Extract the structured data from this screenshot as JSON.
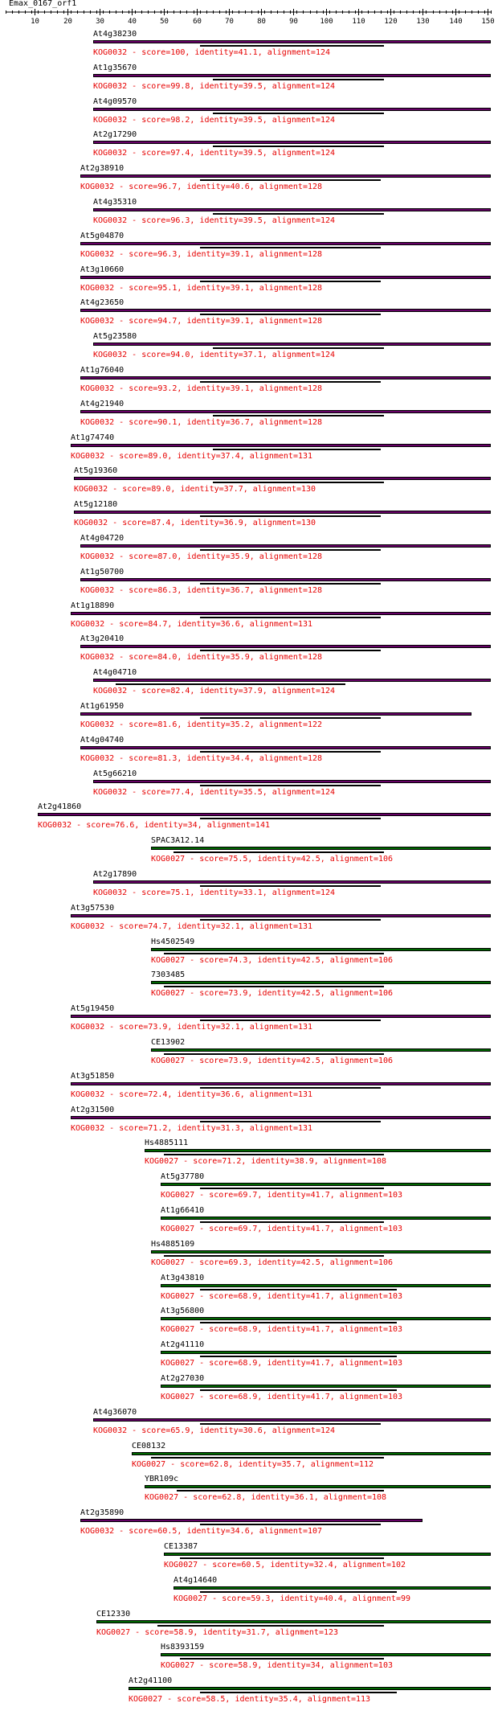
{
  "title": "Emax_0167_orf1",
  "ruler": {
    "ticks": [
      10,
      20,
      30,
      40,
      50,
      60,
      70,
      80,
      90,
      100,
      110,
      120,
      130,
      140,
      150
    ],
    "range": [
      1,
      151
    ]
  },
  "colors": {
    "KOG0032": "#660066",
    "KOG0027": "#006600",
    "score_text": "#e60000",
    "label_text": "#000000"
  },
  "hits": [
    {
      "name": "At4g38230",
      "kog": "KOG0032",
      "score_text": "KOG0032 - score=100, identity=41.1, alignment=124",
      "start": 28,
      "end": 151,
      "inner_start": 61,
      "inner_end": 118
    },
    {
      "name": "At1g35670",
      "kog": "KOG0032",
      "score_text": "KOG0032 - score=99.8, identity=39.5, alignment=124",
      "start": 28,
      "end": 151,
      "inner_start": 65,
      "inner_end": 118
    },
    {
      "name": "At4g09570",
      "kog": "KOG0032",
      "score_text": "KOG0032 - score=98.2, identity=39.5, alignment=124",
      "start": 28,
      "end": 151,
      "inner_start": 65,
      "inner_end": 118
    },
    {
      "name": "At2g17290",
      "kog": "KOG0032",
      "score_text": "KOG0032 - score=97.4, identity=39.5, alignment=124",
      "start": 28,
      "end": 151,
      "inner_start": 65,
      "inner_end": 118
    },
    {
      "name": "At2g38910",
      "kog": "KOG0032",
      "score_text": "KOG0032 - score=96.7, identity=40.6, alignment=128",
      "start": 24,
      "end": 151,
      "inner_start": 61,
      "inner_end": 117
    },
    {
      "name": "At4g35310",
      "kog": "KOG0032",
      "score_text": "KOG0032 - score=96.3, identity=39.5, alignment=124",
      "start": 28,
      "end": 151,
      "inner_start": 65,
      "inner_end": 118
    },
    {
      "name": "At5g04870",
      "kog": "KOG0032",
      "score_text": "KOG0032 - score=96.3, identity=39.1, alignment=128",
      "start": 24,
      "end": 151,
      "inner_start": 61,
      "inner_end": 117
    },
    {
      "name": "At3g10660",
      "kog": "KOG0032",
      "score_text": "KOG0032 - score=95.1, identity=39.1, alignment=128",
      "start": 24,
      "end": 151,
      "inner_start": 61,
      "inner_end": 117
    },
    {
      "name": "At4g23650",
      "kog": "KOG0032",
      "score_text": "KOG0032 - score=94.7, identity=39.1, alignment=128",
      "start": 24,
      "end": 151,
      "inner_start": 61,
      "inner_end": 117
    },
    {
      "name": "At5g23580",
      "kog": "KOG0032",
      "score_text": "KOG0032 - score=94.0, identity=37.1, alignment=124",
      "start": 28,
      "end": 151,
      "inner_start": 65,
      "inner_end": 118
    },
    {
      "name": "At1g76040",
      "kog": "KOG0032",
      "score_text": "KOG0032 - score=93.2, identity=39.1, alignment=128",
      "start": 24,
      "end": 151,
      "inner_start": 61,
      "inner_end": 117
    },
    {
      "name": "At4g21940",
      "kog": "KOG0032",
      "score_text": "KOG0032 - score=90.1, identity=36.7, alignment=128",
      "start": 24,
      "end": 151,
      "inner_start": 65,
      "inner_end": 118
    },
    {
      "name": "At1g74740",
      "kog": "KOG0032",
      "score_text": "KOG0032 - score=89.0, identity=37.4, alignment=131",
      "start": 21,
      "end": 151,
      "inner_start": 65,
      "inner_end": 117
    },
    {
      "name": "At5g19360",
      "kog": "KOG0032",
      "score_text": "KOG0032 - score=89.0, identity=37.7, alignment=130",
      "start": 22,
      "end": 151,
      "inner_start": 65,
      "inner_end": 118
    },
    {
      "name": "At5g12180",
      "kog": "KOG0032",
      "score_text": "KOG0032 - score=87.4, identity=36.9, alignment=130",
      "start": 22,
      "end": 151,
      "inner_start": 61,
      "inner_end": 117
    },
    {
      "name": "At4g04720",
      "kog": "KOG0032",
      "score_text": "KOG0032 - score=87.0, identity=35.9, alignment=128",
      "start": 24,
      "end": 151,
      "inner_start": 61,
      "inner_end": 117
    },
    {
      "name": "At1g50700",
      "kog": "KOG0032",
      "score_text": "KOG0032 - score=86.3, identity=36.7, alignment=128",
      "start": 24,
      "end": 151,
      "inner_start": 61,
      "inner_end": 117
    },
    {
      "name": "At1g18890",
      "kog": "KOG0032",
      "score_text": "KOG0032 - score=84.7, identity=36.6, alignment=131",
      "start": 21,
      "end": 151,
      "inner_start": 61,
      "inner_end": 117
    },
    {
      "name": "At3g20410",
      "kog": "KOG0032",
      "score_text": "KOG0032 - score=84.0, identity=35.9, alignment=128",
      "start": 24,
      "end": 151,
      "inner_start": 61,
      "inner_end": 117
    },
    {
      "name": "At4g04710",
      "kog": "KOG0032",
      "score_text": "KOG0032 - score=82.4, identity=37.9, alignment=124",
      "start": 28,
      "end": 151,
      "inner_start": 35,
      "inner_end": 106
    },
    {
      "name": "At1g61950",
      "kog": "KOG0032",
      "score_text": "KOG0032 - score=81.6, identity=35.2, alignment=122",
      "start": 24,
      "end": 145,
      "inner_start": 61,
      "inner_end": 117
    },
    {
      "name": "At4g04740",
      "kog": "KOG0032",
      "score_text": "KOG0032 - score=81.3, identity=34.4, alignment=128",
      "start": 24,
      "end": 151,
      "inner_start": 61,
      "inner_end": 117
    },
    {
      "name": "At5g66210",
      "kog": "KOG0032",
      "score_text": "KOG0032 - score=77.4, identity=35.5, alignment=124",
      "start": 28,
      "end": 151,
      "inner_start": 61,
      "inner_end": 117
    },
    {
      "name": "At2g41860",
      "kog": "KOG0032",
      "score_text": "KOG0032 - score=76.6, identity=34, alignment=141",
      "start": 11,
      "end": 151,
      "inner_start": 61,
      "inner_end": 117
    },
    {
      "name": "SPAC3A12.14",
      "kog": "KOG0027",
      "score_text": "KOG0027 - score=75.5, identity=42.5, alignment=106",
      "start": 46,
      "end": 151,
      "inner_start": 53,
      "inner_end": 118
    },
    {
      "name": "At2g17890",
      "kog": "KOG0032",
      "score_text": "KOG0032 - score=75.1, identity=33.1, alignment=124",
      "start": 28,
      "end": 151,
      "inner_start": 61,
      "inner_end": 117
    },
    {
      "name": "At3g57530",
      "kog": "KOG0032",
      "score_text": "KOG0032 - score=74.7, identity=32.1, alignment=131",
      "start": 21,
      "end": 151,
      "inner_start": 61,
      "inner_end": 117
    },
    {
      "name": "Hs4502549",
      "kog": "KOG0027",
      "score_text": "KOG0027 - score=74.3, identity=42.5, alignment=106",
      "start": 46,
      "end": 151,
      "inner_start": 50,
      "inner_end": 118
    },
    {
      "name": "7303485",
      "kog": "KOG0027",
      "score_text": "KOG0027 - score=73.9, identity=42.5, alignment=106",
      "start": 46,
      "end": 151,
      "inner_start": 50,
      "inner_end": 118
    },
    {
      "name": "At5g19450",
      "kog": "KOG0032",
      "score_text": "KOG0032 - score=73.9, identity=32.1, alignment=131",
      "start": 21,
      "end": 151,
      "inner_start": 61,
      "inner_end": 117
    },
    {
      "name": "CE13902",
      "kog": "KOG0027",
      "score_text": "KOG0027 - score=73.9, identity=42.5, alignment=106",
      "start": 46,
      "end": 151,
      "inner_start": 50,
      "inner_end": 118
    },
    {
      "name": "At3g51850",
      "kog": "KOG0032",
      "score_text": "KOG0032 - score=72.4, identity=36.6, alignment=131",
      "start": 21,
      "end": 151,
      "inner_start": 61,
      "inner_end": 117
    },
    {
      "name": "At2g31500",
      "kog": "KOG0032",
      "score_text": "KOG0032 - score=71.2, identity=31.3, alignment=131",
      "start": 21,
      "end": 151,
      "inner_start": 61,
      "inner_end": 117
    },
    {
      "name": "Hs4885111",
      "kog": "KOG0027",
      "score_text": "KOG0027 - score=71.2, identity=38.9, alignment=108",
      "start": 44,
      "end": 151,
      "inner_start": 50,
      "inner_end": 118
    },
    {
      "name": "At5g37780",
      "kog": "KOG0027",
      "score_text": "KOG0027 - score=69.7, identity=41.7, alignment=103",
      "start": 49,
      "end": 151,
      "inner_start": 61,
      "inner_end": 118
    },
    {
      "name": "At1g66410",
      "kog": "KOG0027",
      "score_text": "KOG0027 - score=69.7, identity=41.7, alignment=103",
      "start": 49,
      "end": 151,
      "inner_start": 61,
      "inner_end": 118
    },
    {
      "name": "Hs4885109",
      "kog": "KOG0027",
      "score_text": "KOG0027 - score=69.3, identity=42.5, alignment=106",
      "start": 46,
      "end": 151,
      "inner_start": 50,
      "inner_end": 118
    },
    {
      "name": "At3g43810",
      "kog": "KOG0027",
      "score_text": "KOG0027 - score=68.9, identity=41.7, alignment=103",
      "start": 49,
      "end": 151,
      "inner_start": 61,
      "inner_end": 122
    },
    {
      "name": "At3g56800",
      "kog": "KOG0027",
      "score_text": "KOG0027 - score=68.9, identity=41.7, alignment=103",
      "start": 49,
      "end": 151,
      "inner_start": 61,
      "inner_end": 122
    },
    {
      "name": "At2g41110",
      "kog": "KOG0027",
      "score_text": "KOG0027 - score=68.9, identity=41.7, alignment=103",
      "start": 49,
      "end": 151,
      "inner_start": 61,
      "inner_end": 122
    },
    {
      "name": "At2g27030",
      "kog": "KOG0027",
      "score_text": "KOG0027 - score=68.9, identity=41.7, alignment=103",
      "start": 49,
      "end": 151,
      "inner_start": 61,
      "inner_end": 122
    },
    {
      "name": "At4g36070",
      "kog": "KOG0032",
      "score_text": "KOG0032 - score=65.9, identity=30.6, alignment=124",
      "start": 28,
      "end": 151,
      "inner_start": 61,
      "inner_end": 117
    },
    {
      "name": "CE08132",
      "kog": "KOG0027",
      "score_text": "KOG0027 - score=62.8, identity=35.7, alignment=112",
      "start": 40,
      "end": 151,
      "inner_start": 46,
      "inner_end": 118
    },
    {
      "name": "YBR109c",
      "kog": "KOG0027",
      "score_text": "KOG0027 - score=62.8, identity=36.1, alignment=108",
      "start": 44,
      "end": 151,
      "inner_start": 54,
      "inner_end": 118
    },
    {
      "name": "At2g35890",
      "kog": "KOG0032",
      "score_text": "KOG0032 - score=60.5, identity=34.6, alignment=107",
      "start": 24,
      "end": 130,
      "inner_start": 61,
      "inner_end": 117
    },
    {
      "name": "CE13387",
      "kog": "KOG0027",
      "score_text": "KOG0027 - score=60.5, identity=32.4, alignment=102",
      "start": 50,
      "end": 151,
      "inner_start": 55,
      "inner_end": 118
    },
    {
      "name": "At4g14640",
      "kog": "KOG0027",
      "score_text": "KOG0027 - score=59.3, identity=40.4, alignment=99",
      "start": 53,
      "end": 151,
      "inner_start": 61,
      "inner_end": 122
    },
    {
      "name": "CE12330",
      "kog": "KOG0027",
      "score_text": "KOG0027 - score=58.9, identity=31.7, alignment=123",
      "start": 29,
      "end": 151,
      "inner_start": 48,
      "inner_end": 118
    },
    {
      "name": "Hs8393159",
      "kog": "KOG0027",
      "score_text": "KOG0027 - score=58.9, identity=34, alignment=103",
      "start": 49,
      "end": 151,
      "inner_start": 55,
      "inner_end": 118
    },
    {
      "name": "At2g41100",
      "kog": "KOG0027",
      "score_text": "KOG0027 - score=58.5, identity=35.4, alignment=113",
      "start": 39,
      "end": 151,
      "inner_start": 61,
      "inner_end": 122
    }
  ]
}
